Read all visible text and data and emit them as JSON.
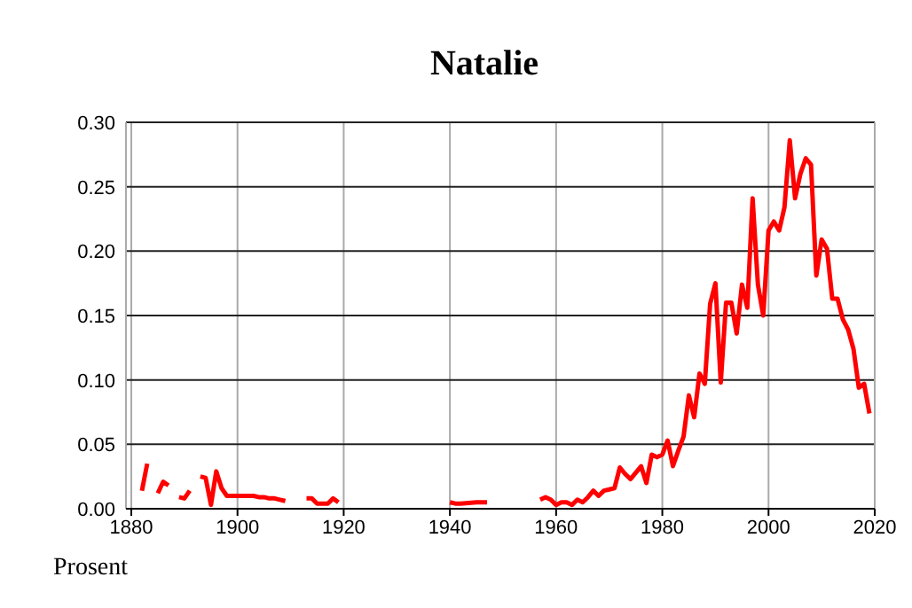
{
  "chart_data": {
    "type": "line",
    "title": "Natalie",
    "ylabel": "Prosent",
    "x": [
      1882,
      1883,
      1884,
      1885,
      1886,
      1887,
      1888,
      1889,
      1890,
      1891,
      1892,
      1893,
      1894,
      1895,
      1896,
      1897,
      1898,
      1899,
      1900,
      1901,
      1902,
      1903,
      1904,
      1905,
      1906,
      1907,
      1908,
      1909,
      1910,
      1913,
      1914,
      1915,
      1916,
      1917,
      1918,
      1919,
      1920,
      1940,
      1941,
      1942,
      1945,
      1946,
      1947,
      1948,
      1957,
      1958,
      1959,
      1960,
      1961,
      1962,
      1963,
      1964,
      1965,
      1966,
      1967,
      1968,
      1969,
      1970,
      1971,
      1972,
      1973,
      1974,
      1975,
      1976,
      1977,
      1978,
      1979,
      1980,
      1981,
      1982,
      1983,
      1984,
      1985,
      1986,
      1987,
      1988,
      1989,
      1990,
      1991,
      1992,
      1993,
      1994,
      1995,
      1996,
      1997,
      1998,
      1999,
      2000,
      2001,
      2002,
      2003,
      2004,
      2005,
      2006,
      2007,
      2008,
      2009,
      2010,
      2011,
      2012,
      2013,
      2014,
      2015,
      2016,
      2017,
      2018,
      2019
    ],
    "series": [
      {
        "color": "#ff0000",
        "values": [
          0.014,
          0.035,
          null,
          0.012,
          0.021,
          0.018,
          null,
          0.009,
          0.008,
          0.014,
          null,
          0.025,
          0.024,
          0.003,
          0.029,
          0.016,
          0.01,
          0.01,
          0.01,
          0.01,
          0.01,
          0.01,
          0.009,
          0.009,
          0.008,
          0.008,
          0.007,
          0.006,
          null,
          0.008,
          0.008,
          0.004,
          0.004,
          0.004,
          0.008,
          0.005,
          null,
          0.005,
          0.004,
          0.004,
          0.005,
          0.005,
          0.005,
          null,
          0.007,
          0.009,
          0.007,
          0.003,
          0.005,
          0.005,
          0.003,
          0.007,
          0.005,
          0.009,
          0.014,
          0.01,
          0.014,
          0.015,
          0.016,
          0.032,
          0.027,
          0.023,
          0.028,
          0.033,
          0.02,
          0.042,
          0.04,
          0.042,
          0.053,
          0.033,
          0.045,
          0.056,
          0.088,
          0.071,
          0.105,
          0.097,
          0.159,
          0.175,
          0.098,
          0.16,
          0.16,
          0.136,
          0.174,
          0.156,
          0.241,
          0.174,
          0.15,
          0.216,
          0.223,
          0.216,
          0.234,
          0.286,
          0.241,
          0.26,
          0.272,
          0.267,
          0.181,
          0.209,
          0.202,
          0.163,
          0.163,
          0.147,
          0.139,
          0.124,
          0.094,
          0.097,
          0.074
        ]
      }
    ],
    "xlim": [
      1879,
      2020
    ],
    "xticks": [
      1880,
      1900,
      1920,
      1940,
      1960,
      1980,
      2000,
      2020
    ],
    "ylim": [
      0,
      0.3
    ],
    "yticks": [
      {
        "value": 0,
        "label": "0.00"
      },
      {
        "value": 0.05,
        "label": "0.05"
      },
      {
        "value": 0.1,
        "label": "0.10"
      },
      {
        "value": 0.15,
        "label": "0.15"
      },
      {
        "value": 0.2,
        "label": "0.20"
      },
      {
        "value": 0.25,
        "label": "0.25"
      },
      {
        "value": 0.3,
        "label": "0.30"
      }
    ],
    "grid": true,
    "marker": "none",
    "line_style": "solid"
  }
}
